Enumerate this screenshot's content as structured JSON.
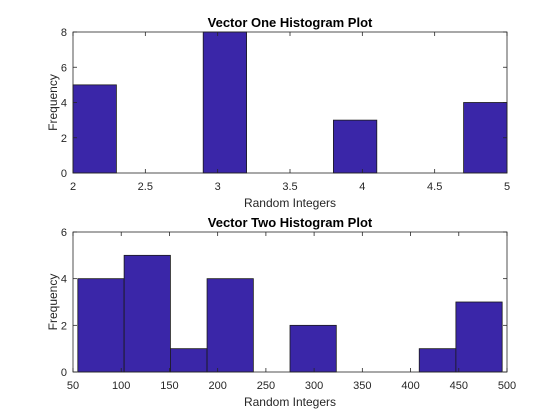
{
  "chart_data": [
    {
      "type": "bar",
      "title": "Vector One Histogram Plot",
      "xlabel": "Random Integers",
      "ylabel": "Frequency",
      "xlim": [
        2,
        5
      ],
      "ylim": [
        0,
        8
      ],
      "xticks": [
        "2",
        "2.5",
        "3",
        "3.5",
        "4",
        "4.5",
        "5"
      ],
      "yticks": [
        "0",
        "2",
        "4",
        "6",
        "8"
      ],
      "bin_edges": [
        2,
        2.3,
        2.6,
        2.9,
        3.2,
        3.5,
        3.8,
        4.1,
        4.4,
        4.7,
        5.0
      ],
      "values": [
        5,
        0,
        0,
        8,
        0,
        0,
        3,
        0,
        0,
        4
      ],
      "bar_color": "#3a26a8",
      "grid": false
    },
    {
      "type": "bar",
      "title": "Vector Two Histogram Plot",
      "xlabel": "Random Integers",
      "ylabel": "Frequency",
      "xlim": [
        50,
        500
      ],
      "ylim": [
        0,
        6
      ],
      "xticks": [
        "50",
        "100",
        "150",
        "200",
        "250",
        "300",
        "350",
        "400",
        "450",
        "500"
      ],
      "yticks": [
        "0",
        "2",
        "4",
        "6"
      ],
      "bin_edges": [
        55,
        103,
        151,
        189,
        237,
        275,
        323,
        361,
        409,
        447,
        495
      ],
      "values": [
        4,
        5,
        1,
        4,
        0,
        2,
        0,
        0,
        1,
        3
      ],
      "bar_color": "#3a26a8",
      "grid": false
    }
  ]
}
